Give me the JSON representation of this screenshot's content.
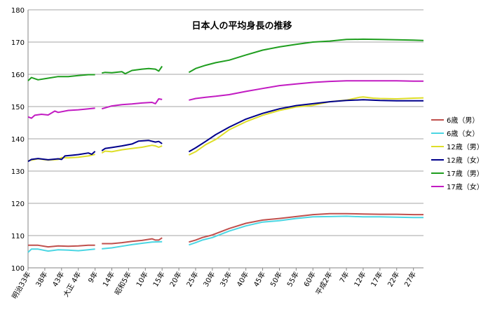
{
  "chart_data": {
    "type": "line",
    "title": "日本人の平均身長の推移",
    "xlabel": "",
    "ylabel": "",
    "ylim": [
      100,
      180
    ],
    "yticks": [
      100,
      110,
      120,
      130,
      140,
      150,
      160,
      170,
      180
    ],
    "grid": true,
    "legend_position": "right",
    "x_tick_labels": [
      {
        "year": 1900,
        "label": "明治33年"
      },
      {
        "year": 1905,
        "label": "38年"
      },
      {
        "year": 1910,
        "label": "43年"
      },
      {
        "year": 1915,
        "label": "大正 4年"
      },
      {
        "year": 1920,
        "label": "9年"
      },
      {
        "year": 1925,
        "label": "14年"
      },
      {
        "year": 1930,
        "label": "昭和5年"
      },
      {
        "year": 1935,
        "label": "10年"
      },
      {
        "year": 1940,
        "label": "15年"
      },
      {
        "year": 1945,
        "label": "20年"
      },
      {
        "year": 1950,
        "label": "25年"
      },
      {
        "year": 1955,
        "label": "30年"
      },
      {
        "year": 1960,
        "label": "35年"
      },
      {
        "year": 1965,
        "label": "40年"
      },
      {
        "year": 1970,
        "label": "45年"
      },
      {
        "year": 1975,
        "label": "50年"
      },
      {
        "year": 1980,
        "label": "55年"
      },
      {
        "year": 1985,
        "label": "60年"
      },
      {
        "year": 1990,
        "label": "平成2年"
      },
      {
        "year": 1995,
        "label": "7年"
      },
      {
        "year": 2000,
        "label": "12年"
      },
      {
        "year": 2005,
        "label": "17年"
      },
      {
        "year": 2010,
        "label": "22年"
      },
      {
        "year": 2015,
        "label": "27年"
      }
    ],
    "x_range": [
      1900,
      2018
    ],
    "series": [
      {
        "name": "6歳（男）",
        "color": "#c0504d",
        "segments": [
          [
            [
              1900,
              107.0
            ],
            [
              1903,
              107.0
            ],
            [
              1906,
              106.5
            ],
            [
              1909,
              106.8
            ],
            [
              1912,
              106.7
            ],
            [
              1915,
              106.8
            ],
            [
              1918,
              107.0
            ],
            [
              1920,
              107.0
            ]
          ],
          [
            [
              1922,
              107.5
            ],
            [
              1925,
              107.5
            ],
            [
              1928,
              107.8
            ],
            [
              1931,
              108.2
            ],
            [
              1934,
              108.5
            ],
            [
              1937,
              109.0
            ],
            [
              1938,
              108.6
            ],
            [
              1939,
              108.6
            ],
            [
              1940,
              109.3
            ]
          ],
          [
            [
              1948,
              108.0
            ],
            [
              1950,
              108.6
            ],
            [
              1952,
              109.4
            ],
            [
              1955,
              110.2
            ],
            [
              1960,
              112.2
            ],
            [
              1965,
              113.8
            ],
            [
              1970,
              114.8
            ],
            [
              1975,
              115.3
            ],
            [
              1980,
              115.9
            ],
            [
              1985,
              116.5
            ],
            [
              1990,
              116.8
            ],
            [
              1995,
              116.8
            ],
            [
              2000,
              116.7
            ],
            [
              2005,
              116.6
            ],
            [
              2010,
              116.6
            ],
            [
              2015,
              116.5
            ],
            [
              2018,
              116.5
            ]
          ]
        ]
      },
      {
        "name": "6歳（女）",
        "color": "#4bd6e3",
        "segments": [
          [
            [
              1900,
              104.8
            ],
            [
              1901,
              105.8
            ],
            [
              1903,
              105.8
            ],
            [
              1906,
              105.2
            ],
            [
              1909,
              105.6
            ],
            [
              1912,
              105.5
            ],
            [
              1915,
              105.3
            ],
            [
              1918,
              105.6
            ],
            [
              1920,
              105.8
            ]
          ],
          [
            [
              1922,
              105.9
            ],
            [
              1925,
              106.2
            ],
            [
              1928,
              106.7
            ],
            [
              1931,
              107.2
            ],
            [
              1934,
              107.6
            ],
            [
              1937,
              108.0
            ],
            [
              1940,
              108.1
            ]
          ],
          [
            [
              1948,
              107.1
            ],
            [
              1950,
              107.8
            ],
            [
              1952,
              108.6
            ],
            [
              1955,
              109.4
            ],
            [
              1960,
              111.4
            ],
            [
              1965,
              113.0
            ],
            [
              1970,
              114.2
            ],
            [
              1975,
              114.6
            ],
            [
              1980,
              115.3
            ],
            [
              1985,
              115.8
            ],
            [
              1990,
              115.9
            ],
            [
              1995,
              116.0
            ],
            [
              2000,
              115.8
            ],
            [
              2005,
              115.8
            ],
            [
              2010,
              115.7
            ],
            [
              2015,
              115.6
            ],
            [
              2018,
              115.6
            ]
          ]
        ]
      },
      {
        "name": "12歳（男）",
        "color": "#dede29",
        "segments": [
          [
            [
              1900,
              133.2
            ],
            [
              1903,
              133.8
            ],
            [
              1906,
              133.4
            ],
            [
              1909,
              133.6
            ],
            [
              1910,
              134.2
            ],
            [
              1912,
              134.1
            ],
            [
              1915,
              134.3
            ],
            [
              1918,
              134.7
            ],
            [
              1920,
              135.2
            ]
          ],
          [
            [
              1922,
              135.6
            ],
            [
              1923,
              136.2
            ],
            [
              1925,
              136.0
            ],
            [
              1928,
              136.6
            ],
            [
              1931,
              137.0
            ],
            [
              1934,
              137.4
            ],
            [
              1937,
              138.0
            ],
            [
              1938,
              137.8
            ],
            [
              1939,
              137.4
            ],
            [
              1940,
              137.8
            ]
          ],
          [
            [
              1948,
              135.0
            ],
            [
              1950,
              136.0
            ],
            [
              1953,
              138.2
            ],
            [
              1956,
              139.8
            ],
            [
              1960,
              142.8
            ],
            [
              1965,
              145.3
            ],
            [
              1970,
              147.3
            ],
            [
              1975,
              148.8
            ],
            [
              1980,
              149.9
            ],
            [
              1985,
              150.4
            ],
            [
              1990,
              151.5
            ],
            [
              1995,
              152.0
            ],
            [
              1999,
              152.9
            ],
            [
              2000,
              153.0
            ],
            [
              2003,
              152.6
            ],
            [
              2005,
              152.5
            ],
            [
              2010,
              152.4
            ],
            [
              2015,
              152.6
            ],
            [
              2018,
              152.7
            ]
          ]
        ]
      },
      {
        "name": "12歳（女）",
        "color": "#00008b",
        "segments": [
          [
            [
              1900,
              133.0
            ],
            [
              1901,
              133.6
            ],
            [
              1903,
              133.9
            ],
            [
              1906,
              133.5
            ],
            [
              1909,
              133.8
            ],
            [
              1910,
              133.6
            ],
            [
              1911,
              134.7
            ],
            [
              1913,
              134.9
            ],
            [
              1915,
              135.1
            ],
            [
              1918,
              135.6
            ],
            [
              1919,
              135.2
            ],
            [
              1920,
              136.1
            ]
          ],
          [
            [
              1922,
              136.3
            ],
            [
              1923,
              137.0
            ],
            [
              1925,
              137.3
            ],
            [
              1928,
              137.8
            ],
            [
              1931,
              138.4
            ],
            [
              1933,
              139.3
            ],
            [
              1936,
              139.5
            ],
            [
              1938,
              139.0
            ],
            [
              1939,
              139.2
            ],
            [
              1940,
              138.5
            ]
          ],
          [
            [
              1948,
              136.0
            ],
            [
              1950,
              137.2
            ],
            [
              1953,
              139.2
            ],
            [
              1956,
              141.3
            ],
            [
              1960,
              143.6
            ],
            [
              1965,
              146.1
            ],
            [
              1970,
              147.9
            ],
            [
              1975,
              149.3
            ],
            [
              1980,
              150.3
            ],
            [
              1985,
              150.9
            ],
            [
              1990,
              151.5
            ],
            [
              1995,
              151.9
            ],
            [
              2000,
              152.1
            ],
            [
              2005,
              151.9
            ],
            [
              2010,
              151.8
            ],
            [
              2015,
              151.8
            ],
            [
              2018,
              151.8
            ]
          ]
        ]
      },
      {
        "name": "17歳（男）",
        "color": "#1f9e1f",
        "segments": [
          [
            [
              1900,
              158.0
            ],
            [
              1901,
              159.0
            ],
            [
              1903,
              158.3
            ],
            [
              1906,
              158.8
            ],
            [
              1909,
              159.3
            ],
            [
              1912,
              159.3
            ],
            [
              1915,
              159.6
            ],
            [
              1918,
              159.9
            ],
            [
              1920,
              159.9
            ]
          ],
          [
            [
              1922,
              160.4
            ],
            [
              1923,
              160.6
            ],
            [
              1925,
              160.5
            ],
            [
              1928,
              160.8
            ],
            [
              1929,
              160.2
            ],
            [
              1931,
              161.2
            ],
            [
              1934,
              161.6
            ],
            [
              1936,
              161.8
            ],
            [
              1938,
              161.6
            ],
            [
              1939,
              161.0
            ],
            [
              1940,
              162.5
            ]
          ],
          [
            [
              1948,
              160.6
            ],
            [
              1950,
              161.8
            ],
            [
              1953,
              162.8
            ],
            [
              1956,
              163.6
            ],
            [
              1960,
              164.4
            ],
            [
              1965,
              166.0
            ],
            [
              1970,
              167.5
            ],
            [
              1975,
              168.5
            ],
            [
              1980,
              169.3
            ],
            [
              1985,
              170.0
            ],
            [
              1990,
              170.3
            ],
            [
              1995,
              170.8
            ],
            [
              2000,
              170.9
            ],
            [
              2005,
              170.8
            ],
            [
              2010,
              170.7
            ],
            [
              2015,
              170.6
            ],
            [
              2018,
              170.5
            ]
          ]
        ]
      },
      {
        "name": "17歳（女）",
        "color": "#c21bc2",
        "segments": [
          [
            [
              1900,
              146.8
            ],
            [
              1901,
              146.4
            ],
            [
              1902,
              147.3
            ],
            [
              1904,
              147.6
            ],
            [
              1906,
              147.4
            ],
            [
              1908,
              148.6
            ],
            [
              1909,
              148.2
            ],
            [
              1912,
              148.8
            ],
            [
              1915,
              149.0
            ],
            [
              1918,
              149.3
            ],
            [
              1920,
              149.5
            ]
          ],
          [
            [
              1922,
              149.3
            ],
            [
              1925,
              150.2
            ],
            [
              1928,
              150.6
            ],
            [
              1931,
              150.8
            ],
            [
              1934,
              151.1
            ],
            [
              1937,
              151.3
            ],
            [
              1938,
              150.9
            ],
            [
              1939,
              152.4
            ],
            [
              1940,
              152.2
            ]
          ],
          [
            [
              1948,
              152.0
            ],
            [
              1950,
              152.5
            ],
            [
              1953,
              152.9
            ],
            [
              1956,
              153.2
            ],
            [
              1960,
              153.7
            ],
            [
              1965,
              154.7
            ],
            [
              1970,
              155.6
            ],
            [
              1975,
              156.5
            ],
            [
              1980,
              157.0
            ],
            [
              1985,
              157.5
            ],
            [
              1990,
              157.8
            ],
            [
              1995,
              158.0
            ],
            [
              2000,
              158.0
            ],
            [
              2005,
              158.0
            ],
            [
              2010,
              158.0
            ],
            [
              2015,
              157.9
            ],
            [
              2018,
              157.9
            ]
          ]
        ]
      }
    ]
  }
}
